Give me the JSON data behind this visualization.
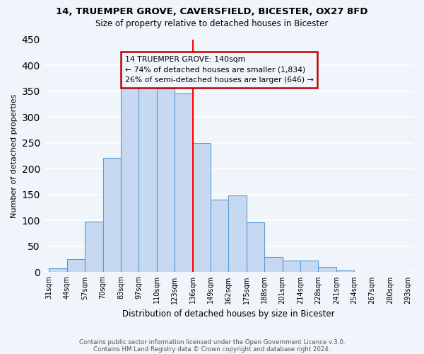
{
  "title1": "14, TRUEMPER GROVE, CAVERSFIELD, BICESTER, OX27 8FD",
  "title2": "Size of property relative to detached houses in Bicester",
  "xlabel": "Distribution of detached houses by size in Bicester",
  "ylabel": "Number of detached properties",
  "footer1": "Contains HM Land Registry data © Crown copyright and database right 2024.",
  "footer2": "Contains public sector information licensed under the Open Government Licence v.3.0.",
  "bin_labels": [
    "31sqm",
    "44sqm",
    "57sqm",
    "70sqm",
    "83sqm",
    "97sqm",
    "110sqm",
    "123sqm",
    "136sqm",
    "149sqm",
    "162sqm",
    "175sqm",
    "188sqm",
    "201sqm",
    "214sqm",
    "228sqm",
    "241sqm",
    "254sqm",
    "267sqm",
    "280sqm",
    "293sqm"
  ],
  "bar_heights": [
    8,
    25,
    98,
    221,
    358,
    363,
    355,
    345,
    250,
    140,
    148,
    96,
    30,
    22,
    22,
    10,
    3,
    1,
    0,
    1
  ],
  "bar_color": "#c6d9f0",
  "bar_edge_color": "#5b9bd5",
  "annotation_title": "14 TRUEMPER GROVE: 140sqm",
  "annotation_line1": "← 74% of detached houses are smaller (1,834)",
  "annotation_line2": "26% of semi-detached houses are larger (646) →",
  "annotation_box_edge": "#c00000",
  "property_line_bin_index": 8,
  "ylim": [
    0,
    450
  ],
  "background_color": "#f0f5fb",
  "grid_color": "white"
}
